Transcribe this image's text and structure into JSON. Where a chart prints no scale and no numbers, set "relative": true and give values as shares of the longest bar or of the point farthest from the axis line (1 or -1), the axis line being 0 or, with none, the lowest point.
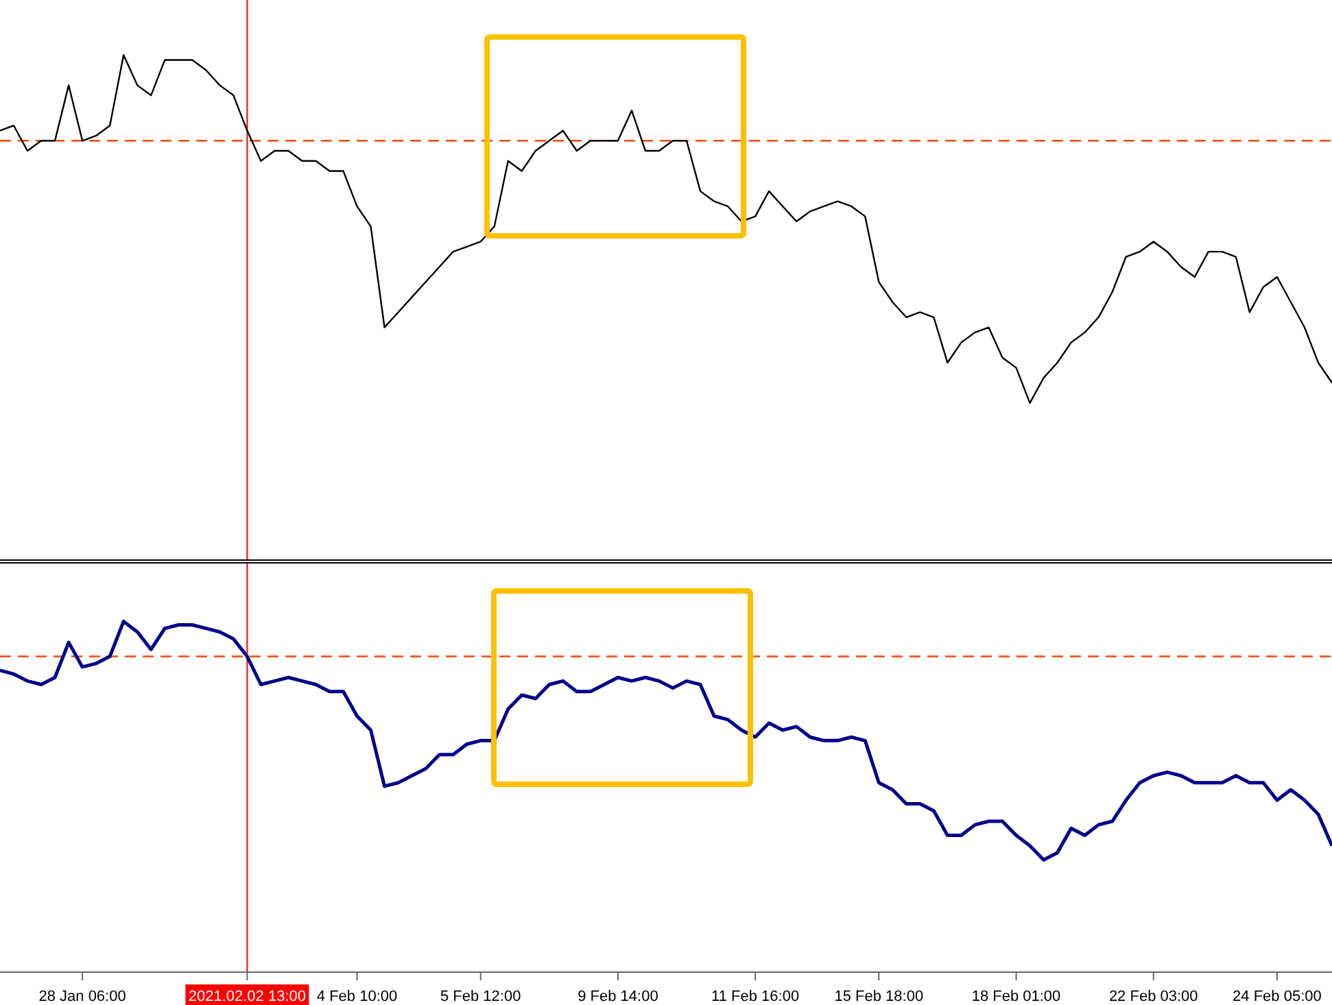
{
  "chart_data": [
    {
      "type": "line",
      "relative": true,
      "tick_labels": false,
      "categories": [
        null,
        null,
        null,
        null,
        null,
        null,
        "28 Jan 06:00",
        null,
        null,
        null,
        null,
        null,
        null,
        null,
        null,
        null,
        null,
        null,
        "2021.02.02 13:00",
        null,
        null,
        null,
        null,
        null,
        null,
        null,
        "4 Feb 10:00",
        null,
        null,
        null,
        null,
        null,
        null,
        null,
        null,
        "5 Feb 12:00",
        null,
        null,
        null,
        null,
        null,
        null,
        null,
        null,
        null,
        "9 Feb 14:00",
        null,
        null,
        null,
        null,
        null,
        null,
        null,
        null,
        null,
        "11 Feb 16:00",
        null,
        null,
        null,
        null,
        null,
        null,
        null,
        null,
        "15 Feb 18:00",
        null,
        null,
        null,
        null,
        null,
        null,
        null,
        null,
        null,
        "18 Feb 01:00",
        null,
        null,
        null,
        null,
        null,
        null,
        null,
        null,
        null,
        "22 Feb 03:00",
        null,
        null,
        null,
        null,
        null,
        null,
        null,
        null,
        "24 Feb 05:00",
        null,
        null,
        null,
        null
      ],
      "series": [
        {
          "color": "#000000",
          "values": [
            0.85,
            0.86,
            0.81,
            0.83,
            0.83,
            0.94,
            0.83,
            0.84,
            0.86,
            1.0,
            0.94,
            0.92,
            0.99,
            0.99,
            0.99,
            0.97,
            0.94,
            0.92,
            0.85,
            0.79,
            0.81,
            0.81,
            0.79,
            0.79,
            0.77,
            0.77,
            0.7,
            0.66,
            0.46,
            0.49,
            0.52,
            0.55,
            0.58,
            0.61,
            0.62,
            0.63,
            0.66,
            0.79,
            0.77,
            0.81,
            0.83,
            0.85,
            0.81,
            0.83,
            0.83,
            0.83,
            0.89,
            0.81,
            0.81,
            0.83,
            0.83,
            0.73,
            0.71,
            0.7,
            0.67,
            0.68,
            0.73,
            0.7,
            0.67,
            0.69,
            0.7,
            0.71,
            0.7,
            0.68,
            0.55,
            0.51,
            0.48,
            0.49,
            0.48,
            0.39,
            0.43,
            0.45,
            0.46,
            0.4,
            0.38,
            0.31,
            0.36,
            0.39,
            0.43,
            0.45,
            0.48,
            0.53,
            0.6,
            0.61,
            0.63,
            0.61,
            0.58,
            0.56,
            0.61,
            0.61,
            0.6,
            0.49,
            0.54,
            0.56,
            0.51,
            0.46,
            0.39,
            0.35
          ]
        }
      ],
      "ref_lines": [
        {
          "axis": "y",
          "value": 0.83,
          "color": "#ff4500",
          "line_style": "dashed"
        },
        {
          "axis": "x",
          "value": "2021.02.02 13:00",
          "color": "#ff0000",
          "line_style": "solid"
        }
      ],
      "grid": false,
      "legend": false,
      "marker": "none",
      "line_style": "solid"
    },
    {
      "type": "line",
      "relative": true,
      "tick_labels": "x",
      "categories": [
        null,
        null,
        null,
        null,
        null,
        null,
        "28 Jan 06:00",
        null,
        null,
        null,
        null,
        null,
        null,
        null,
        null,
        null,
        null,
        null,
        "2021.02.02 13:00",
        null,
        null,
        null,
        null,
        null,
        null,
        null,
        "4 Feb 10:00",
        null,
        null,
        null,
        null,
        null,
        null,
        null,
        null,
        "5 Feb 12:00",
        null,
        null,
        null,
        null,
        null,
        null,
        null,
        null,
        null,
        "9 Feb 14:00",
        null,
        null,
        null,
        null,
        null,
        null,
        null,
        null,
        null,
        "11 Feb 16:00",
        null,
        null,
        null,
        null,
        null,
        null,
        null,
        null,
        "15 Feb 18:00",
        null,
        null,
        null,
        null,
        null,
        null,
        null,
        null,
        null,
        "18 Feb 01:00",
        null,
        null,
        null,
        null,
        null,
        null,
        null,
        null,
        null,
        "22 Feb 03:00",
        null,
        null,
        null,
        null,
        null,
        null,
        null,
        null,
        "24 Feb 05:00",
        null,
        null,
        null,
        null
      ],
      "series": [
        {
          "color": "#00008b",
          "values": [
            0.86,
            0.85,
            0.83,
            0.82,
            0.84,
            0.94,
            0.87,
            0.88,
            0.9,
            1.0,
            0.97,
            0.92,
            0.98,
            0.99,
            0.99,
            0.98,
            0.97,
            0.95,
            0.9,
            0.82,
            0.83,
            0.84,
            0.83,
            0.82,
            0.8,
            0.8,
            0.73,
            0.69,
            0.53,
            0.54,
            0.56,
            0.58,
            0.62,
            0.62,
            0.65,
            0.66,
            0.66,
            0.75,
            0.79,
            0.78,
            0.82,
            0.83,
            0.8,
            0.8,
            0.82,
            0.84,
            0.83,
            0.84,
            0.83,
            0.81,
            0.83,
            0.82,
            0.73,
            0.72,
            0.69,
            0.67,
            0.71,
            0.69,
            0.7,
            0.67,
            0.66,
            0.66,
            0.67,
            0.66,
            0.54,
            0.52,
            0.48,
            0.48,
            0.46,
            0.39,
            0.39,
            0.42,
            0.43,
            0.43,
            0.39,
            0.36,
            0.32,
            0.34,
            0.41,
            0.39,
            0.42,
            0.43,
            0.49,
            0.54,
            0.56,
            0.57,
            0.56,
            0.54,
            0.54,
            0.54,
            0.56,
            0.54,
            0.54,
            0.49,
            0.52,
            0.49,
            0.45,
            0.36
          ]
        }
      ],
      "ref_lines": [
        {
          "axis": "y",
          "value": 0.9,
          "color": "#ff4500",
          "line_style": "dashed"
        },
        {
          "axis": "x",
          "value": "2021.02.02 13:00",
          "color": "#ff0000",
          "line_style": "solid"
        }
      ],
      "grid": false,
      "legend": false,
      "marker": "none",
      "line_style": "solid"
    }
  ]
}
